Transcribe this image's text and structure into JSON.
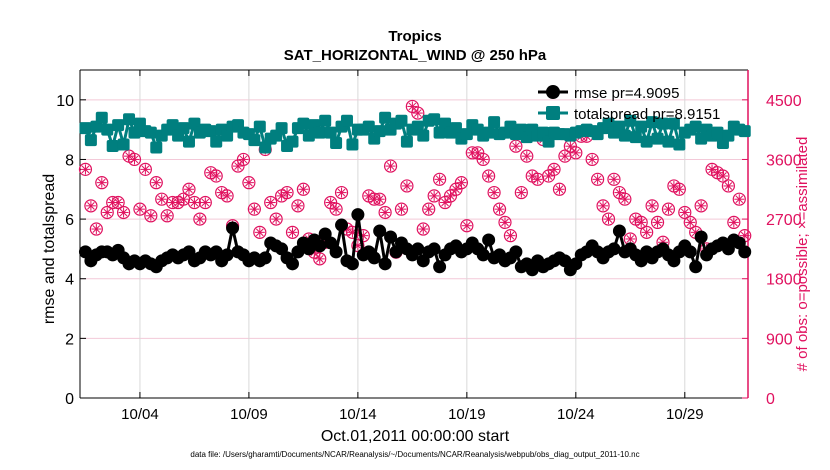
{
  "chart_data": {
    "type": "line",
    "title": "Tropics",
    "subtitle": "SAT_HORIZONTAL_WIND @ 250 hPa",
    "xlabel": "Oct.01,2011 00:00:00 start",
    "ylabel": "rmse and totalspread",
    "y2label": "# of obs: o=possible; ×=assimilated",
    "footnote": "data file: /Users/gharamti/Documents/NCAR/Reanalysis/~/Documents/NCAR/Reanalysis/webpub/obs_diag_output_2011-10.nc",
    "xlim": [
      0.25,
      30.9
    ],
    "ylim": [
      0,
      11
    ],
    "y2lim": [
      0,
      4950
    ],
    "x_start_day": 0.5,
    "x_step_days": 0.25,
    "xticks": [
      {
        "v": 3,
        "label": "10/04"
      },
      {
        "v": 8,
        "label": "10/09"
      },
      {
        "v": 13,
        "label": "10/14"
      },
      {
        "v": 18,
        "label": "10/19"
      },
      {
        "v": 23,
        "label": "10/24"
      },
      {
        "v": 28,
        "label": "10/29"
      }
    ],
    "yticks": [
      {
        "v": 0,
        "label": "0"
      },
      {
        "v": 2,
        "label": "2"
      },
      {
        "v": 4,
        "label": "4"
      },
      {
        "v": 6,
        "label": "6"
      },
      {
        "v": 8,
        "label": "8"
      },
      {
        "v": 10,
        "label": "10"
      }
    ],
    "y2ticks": [
      {
        "v": 0,
        "label": "0"
      },
      {
        "v": 900,
        "label": "900"
      },
      {
        "v": 1800,
        "label": "1800"
      },
      {
        "v": 2700,
        "label": "2700"
      },
      {
        "v": 3600,
        "label": "3600"
      },
      {
        "v": 4500,
        "label": "4500"
      }
    ],
    "grid": true,
    "legend_position": "top-right",
    "colors": {
      "rmse": "#000000",
      "totalspread": "#007f7f",
      "obs": "#e0115f",
      "grid_v": "#d9d9d9",
      "grid_h": "#f3c9d8"
    },
    "series": [
      {
        "name": "rmse",
        "legend": "rmse pr=4.9095",
        "values": [
          4.9,
          4.6,
          4.8,
          4.9,
          4.9,
          4.8,
          4.95,
          4.7,
          4.5,
          4.6,
          4.5,
          4.6,
          4.5,
          4.4,
          4.6,
          4.7,
          4.8,
          4.7,
          4.8,
          4.9,
          4.6,
          4.7,
          4.9,
          4.8,
          4.9,
          4.6,
          4.8,
          5.7,
          4.9,
          4.8,
          4.6,
          4.7,
          4.6,
          4.7,
          5.2,
          5.1,
          5.0,
          4.7,
          4.5,
          4.9,
          5.2,
          5.0,
          5.3,
          5.1,
          5.5,
          5.2,
          4.9,
          5.8,
          4.6,
          4.5,
          6.15,
          4.8,
          4.9,
          4.7,
          5.6,
          4.5,
          5.4,
          4.9,
          5.2,
          5.0,
          4.8,
          5.0,
          4.6,
          4.9,
          5.0,
          4.4,
          4.8,
          5.0,
          5.1,
          4.9,
          5.0,
          5.2,
          5.0,
          4.8,
          5.3,
          4.7,
          4.8,
          4.6,
          4.7,
          4.9,
          4.4,
          4.5,
          4.3,
          4.6,
          4.4,
          4.5,
          4.6,
          4.7,
          4.6,
          4.3,
          4.5,
          4.8,
          4.9,
          5.1,
          4.9,
          4.7,
          4.9,
          5.0,
          5.6,
          4.9,
          5.0,
          4.8,
          4.6,
          4.9,
          4.7,
          4.9,
          5.0,
          4.8,
          4.6,
          4.9,
          5.1,
          4.9,
          4.4,
          5.4,
          4.8,
          5.0,
          5.1,
          5.2,
          5.0,
          5.3,
          5.2,
          4.9
        ]
      },
      {
        "name": "totalspread",
        "legend": "totalspread pr=8.9151",
        "values": [
          9.05,
          8.65,
          9.1,
          9.4,
          9.0,
          8.45,
          9.15,
          8.5,
          9.35,
          8.9,
          9.2,
          8.95,
          8.9,
          8.4,
          8.8,
          9.0,
          9.15,
          8.8,
          9.05,
          8.6,
          9.2,
          8.9,
          9.0,
          8.95,
          8.6,
          9.0,
          8.8,
          9.1,
          9.15,
          8.9,
          8.85,
          8.65,
          9.1,
          8.4,
          8.7,
          8.8,
          9.05,
          8.45,
          8.6,
          9.05,
          9.2,
          8.8,
          9.15,
          8.9,
          9.3,
          8.9,
          8.55,
          9.1,
          9.3,
          8.5,
          9.0,
          9.0,
          9.1,
          8.7,
          8.95,
          9.4,
          9.0,
          9.2,
          9.3,
          8.6,
          9.0,
          9.1,
          8.8,
          9.3,
          9.35,
          8.9,
          9.2,
          8.9,
          9.05,
          8.7,
          8.85,
          9.15,
          9.0,
          8.8,
          8.9,
          9.25,
          8.85,
          8.9,
          9.1,
          8.85,
          9.0,
          8.75,
          9.0,
          8.8,
          8.9,
          8.6,
          8.9,
          8.85,
          8.85,
          8.8,
          8.9,
          8.95,
          9.0,
          8.95,
          8.85,
          9.05,
          9.2,
          8.9,
          9.1,
          8.8,
          9.3,
          8.75,
          9.1,
          8.6,
          9.25,
          8.7,
          9.2,
          8.6,
          9.2,
          8.5,
          8.9,
          9.0,
          9.1,
          8.7,
          9.0,
          8.8,
          8.9,
          8.55,
          8.8,
          9.1,
          9.0,
          8.95
        ]
      },
      {
        "name": "obs_possible",
        "axis": "right",
        "values": [
          3450,
          2900,
          2550,
          3250,
          2800,
          2950,
          2950,
          2800,
          3650,
          3600,
          2850,
          3450,
          2750,
          3250,
          3000,
          2750,
          2950,
          2950,
          3000,
          3150,
          2950,
          2700,
          2950,
          3400,
          3350,
          3100,
          3050,
          2600,
          3500,
          3600,
          3250,
          2850,
          2500,
          3750,
          2950,
          2700,
          3050,
          3100,
          2500,
          2900,
          3150,
          2400,
          2200,
          2100,
          2350,
          2950,
          2850,
          3100,
          2550,
          2500,
          2300,
          2450,
          3050,
          3000,
          3000,
          2800,
          3500,
          2200,
          2850,
          3200,
          4400,
          4300,
          2550,
          2850,
          3050,
          3300,
          2950,
          3050,
          3150,
          3250,
          2600,
          3700,
          3700,
          3600,
          3350,
          3100,
          2850,
          2650,
          2450,
          3800,
          3100,
          3650,
          3350,
          3300,
          3900,
          3350,
          3450,
          3150,
          3650,
          3800,
          3700,
          3950,
          3950,
          3600,
          3300,
          2900,
          2700,
          3300,
          3100,
          3000,
          2400,
          2700,
          2650,
          2500,
          2900,
          2650,
          2350,
          2850,
          3200,
          3150,
          2800,
          2650,
          2500,
          2900,
          2250,
          3450,
          3400,
          3350,
          3200,
          2650,
          3000,
          2450
        ]
      }
    ]
  }
}
